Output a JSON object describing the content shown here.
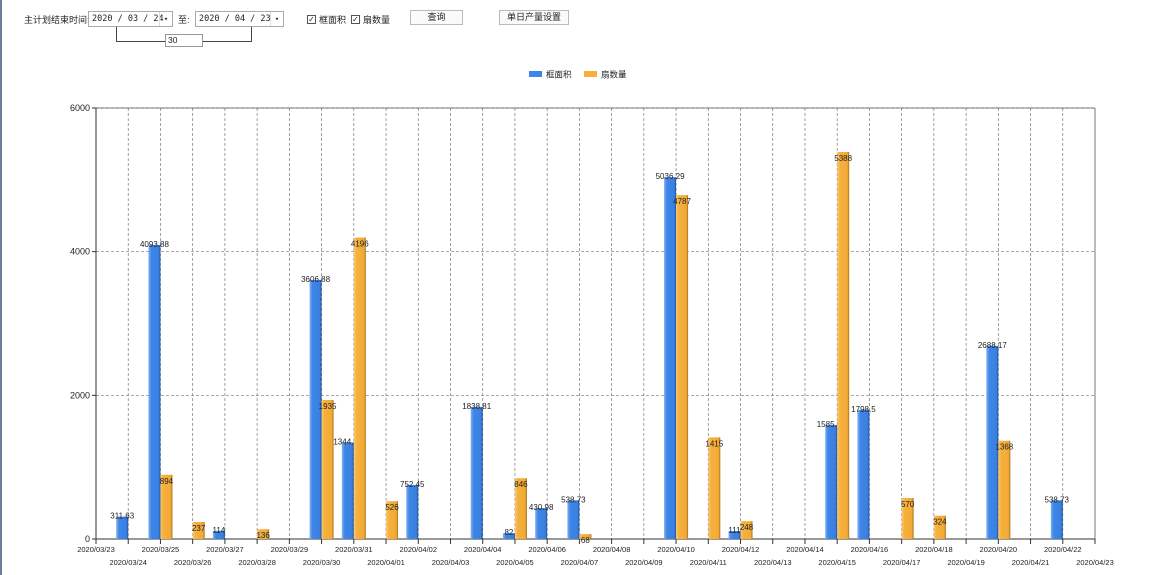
{
  "toolbar": {
    "date_label": "主计划结束时间:",
    "start_date": "2020 / 03 / 24",
    "to_label": "至:",
    "end_date": "2020 / 04 / 23",
    "days_value": "30",
    "check_area_label": "框面积",
    "check_area_checked": true,
    "check_count_label": "扇数量",
    "check_count_checked": true,
    "query_button": "查询",
    "daily_output_button": "单日产量设置",
    "dropdown_icon": "chevron-down-icon"
  },
  "chart_data": {
    "type": "bar",
    "legend_position": "top-center",
    "grid": true,
    "ylim": [
      0,
      6000
    ],
    "yticks": [
      "0",
      "2000",
      "4000",
      "6000"
    ],
    "colors": {
      "area": "#3d85e8",
      "count": "#f5b03c"
    },
    "categories": [
      "2020/03/23",
      "2020/03/24",
      "2020/03/25",
      "2020/03/26",
      "2020/03/27",
      "2020/03/28",
      "2020/03/29",
      "2020/03/30",
      "2020/03/31",
      "2020/04/01",
      "2020/04/02",
      "2020/04/03",
      "2020/04/04",
      "2020/04/05",
      "2020/04/06",
      "2020/04/07",
      "2020/04/08",
      "2020/04/09",
      "2020/04/10",
      "2020/04/11",
      "2020/04/12",
      "2020/04/13",
      "2020/04/14",
      "2020/04/15",
      "2020/04/16",
      "2020/04/17",
      "2020/04/18",
      "2020/04/19",
      "2020/04/20",
      "2020/04/21",
      "2020/04/22",
      "2020/04/23"
    ],
    "series": [
      {
        "name": "框面积",
        "key": "area",
        "values": [
          null,
          311.63,
          4093.88,
          null,
          114,
          null,
          null,
          3606.88,
          1344.95,
          null,
          752.45,
          null,
          1838.81,
          82,
          430.98,
          538.73,
          null,
          null,
          5036.29,
          null,
          111,
          null,
          null,
          1585.96,
          1798.5,
          null,
          null,
          null,
          2688.17,
          null,
          538.73,
          null
        ]
      },
      {
        "name": "扇数量",
        "key": "count",
        "values": [
          null,
          null,
          894,
          237,
          null,
          136,
          null,
          1935,
          4196,
          526,
          null,
          null,
          null,
          846,
          null,
          68,
          null,
          null,
          4787,
          1415,
          248,
          null,
          null,
          5388,
          null,
          570,
          324,
          null,
          1368,
          null,
          null,
          null
        ]
      }
    ]
  }
}
